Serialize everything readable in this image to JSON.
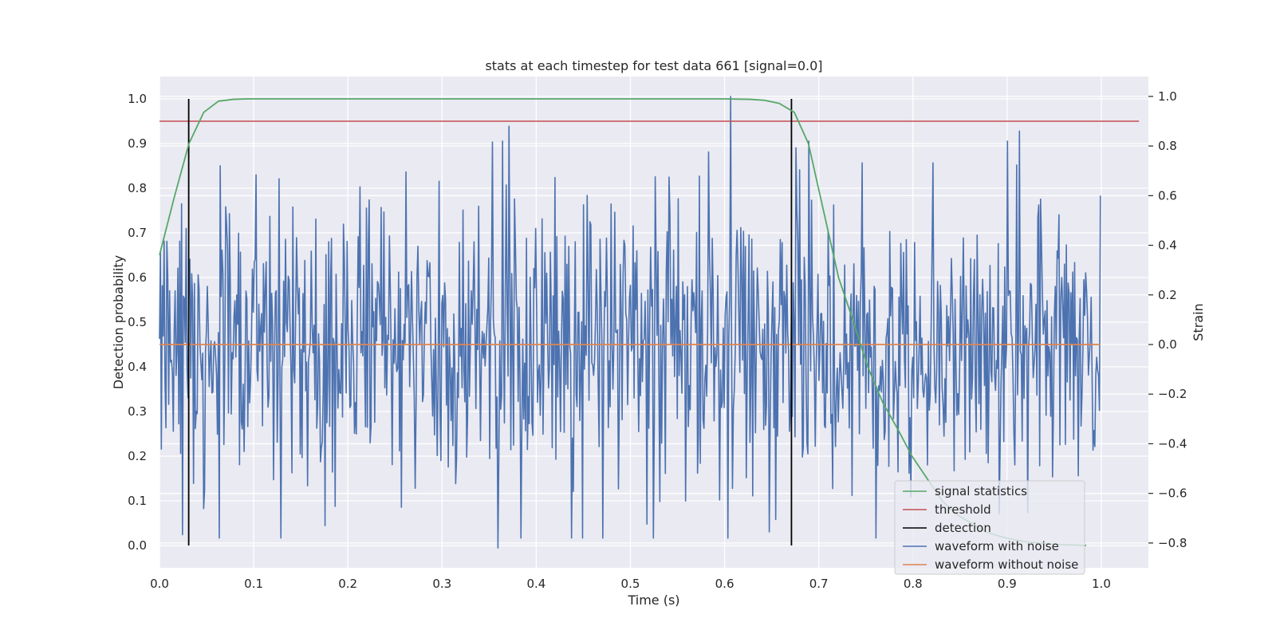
{
  "chart_data": {
    "type": "line",
    "title": "stats at each timestep for test data 661 [signal=0.0]",
    "xlabel": "Time (s)",
    "ylabel": "Detection probability",
    "y2label": "Strain",
    "xlim": [
      0.0,
      1.05
    ],
    "ylim": [
      -0.05,
      1.05
    ],
    "y2lim": [
      -0.9,
      1.08
    ],
    "xticks": [
      "0.0",
      "0.1",
      "0.2",
      "0.3",
      "0.4",
      "0.5",
      "0.6",
      "0.7",
      "0.8",
      "0.9",
      "1.0"
    ],
    "yticks": [
      "0.0",
      "0.1",
      "0.2",
      "0.3",
      "0.4",
      "0.5",
      "0.6",
      "0.7",
      "0.8",
      "0.9",
      "1.0"
    ],
    "y2ticks": [
      "−0.8",
      "−0.6",
      "−0.4",
      "−0.2",
      "0.0",
      "0.2",
      "0.4",
      "0.6",
      "0.8",
      "1.0"
    ],
    "legend_position": "bottom-right",
    "colors": {
      "signal": "#55a868",
      "threshold": "#c44e52",
      "detection": "#000000",
      "noisy": "#4c72b0",
      "clean": "#dd8452",
      "axes_bg": "#eaeaf2"
    },
    "series": [
      {
        "name": "signal statistics",
        "axis": "left",
        "x": [
          0.0,
          0.0157,
          0.0313,
          0.047,
          0.0627,
          0.0783,
          0.094,
          0.1,
          0.2,
          0.3,
          0.4,
          0.5,
          0.6,
          0.627,
          0.642,
          0.658,
          0.674,
          0.689,
          0.705,
          0.721,
          0.737,
          0.752,
          0.768,
          0.784,
          0.799,
          0.815,
          0.831,
          0.846,
          0.862,
          0.878,
          0.893,
          0.909,
          0.925,
          0.94,
          0.956,
          0.972,
          0.984
        ],
        "values": [
          0.65,
          0.78,
          0.9,
          0.97,
          0.995,
          0.999,
          1.0,
          1.0,
          1.0,
          1.0,
          1.0,
          1.0,
          1.0,
          0.999,
          0.997,
          0.99,
          0.97,
          0.9,
          0.75,
          0.6,
          0.5,
          0.4,
          0.32,
          0.26,
          0.2,
          0.15,
          0.1,
          0.07,
          0.05,
          0.03,
          0.02,
          0.012,
          0.007,
          0.004,
          0.002,
          0.001,
          0.0
        ]
      },
      {
        "name": "threshold",
        "axis": "left",
        "x": [
          0.0,
          1.04
        ],
        "values": [
          0.95,
          0.95
        ]
      },
      {
        "name": "detection",
        "axis": "left",
        "type": "vlines",
        "x": [
          0.031,
          0.671
        ],
        "range": [
          0.0,
          1.0
        ]
      },
      {
        "name": "waveform with noise",
        "axis": "right",
        "x_range": [
          0.0,
          0.999
        ],
        "n_points": 1024,
        "noise_std": 0.3,
        "noise_seed": 661,
        "peaks": [
          [
            0.606,
            1.0
          ],
          [
            0.359,
            -0.82
          ],
          [
            0.371,
            0.88
          ],
          [
            0.176,
            -0.73
          ],
          [
            0.913,
            0.86
          ]
        ]
      },
      {
        "name": "waveform without noise",
        "axis": "right",
        "x": [
          0.0,
          0.999
        ],
        "values": [
          0.0,
          0.0
        ]
      }
    ]
  }
}
